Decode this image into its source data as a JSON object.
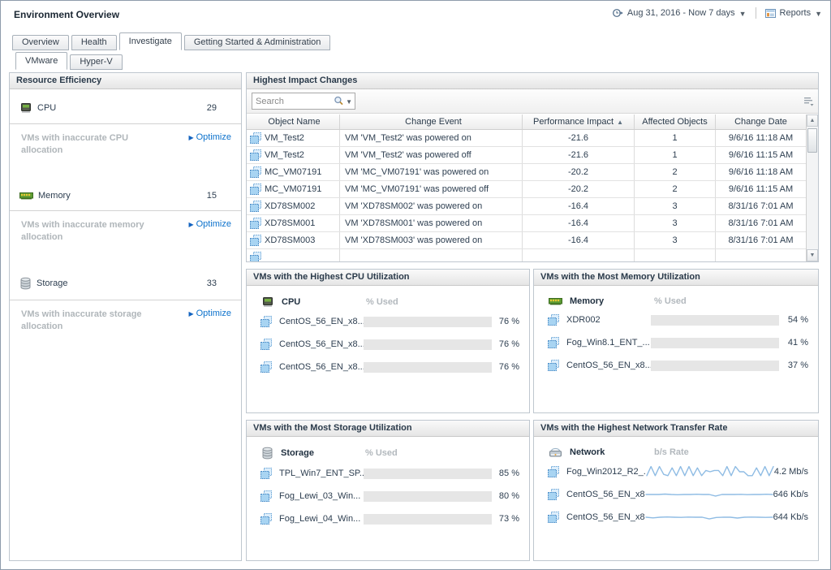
{
  "header": {
    "title": "Environment Overview",
    "time_range": "Aug 31, 2016 - Now 7 days",
    "reports": "Reports"
  },
  "tabs": [
    {
      "label": "Overview",
      "active": false
    },
    {
      "label": "Health",
      "active": false
    },
    {
      "label": "Investigate",
      "active": true
    },
    {
      "label": "Getting Started & Administration",
      "active": false
    }
  ],
  "subtabs": [
    {
      "label": "VMware",
      "active": true
    },
    {
      "label": "Hyper-V",
      "active": false
    }
  ],
  "resource_efficiency": {
    "title": "Resource Efficiency",
    "items": [
      {
        "icon": "cpu-icon",
        "label": "CPU",
        "value": "29",
        "note": "VMs with inaccurate CPU allocation",
        "action": "Optimize"
      },
      {
        "icon": "memory-icon",
        "label": "Memory",
        "value": "15",
        "note": "VMs with inaccurate memory allocation",
        "action": "Optimize"
      },
      {
        "icon": "storage-icon",
        "label": "Storage",
        "value": "33",
        "note": "VMs with inaccurate storage allocation",
        "action": "Optimize"
      }
    ]
  },
  "impact_changes": {
    "title": "Highest Impact Changes",
    "search_placeholder": "Search",
    "columns": [
      {
        "label": "Object Name",
        "sorted": false
      },
      {
        "label": "Change Event",
        "sorted": false
      },
      {
        "label": "Performance Impact",
        "sorted": true
      },
      {
        "label": "Affected Objects",
        "sorted": false
      },
      {
        "label": "Change Date",
        "sorted": false
      }
    ],
    "rows": [
      {
        "object": "VM_Test2",
        "event": "VM 'VM_Test2' was powered on",
        "impact": "-21.6",
        "affected": "1",
        "date": "9/6/16 11:18 AM"
      },
      {
        "object": "VM_Test2",
        "event": "VM 'VM_Test2' was powered off",
        "impact": "-21.6",
        "affected": "1",
        "date": "9/6/16 11:15 AM"
      },
      {
        "object": "MC_VM07191",
        "event": "VM 'MC_VM07191' was powered on",
        "impact": "-20.2",
        "affected": "2",
        "date": "9/6/16 11:18 AM"
      },
      {
        "object": "MC_VM07191",
        "event": "VM 'MC_VM07191' was powered off",
        "impact": "-20.2",
        "affected": "2",
        "date": "9/6/16 11:15 AM"
      },
      {
        "object": "XD78SM002",
        "event": "VM 'XD78SM002' was powered on",
        "impact": "-16.4",
        "affected": "3",
        "date": "8/31/16 7:01 AM"
      },
      {
        "object": "XD78SM001",
        "event": "VM 'XD78SM001' was powered on",
        "impact": "-16.4",
        "affected": "3",
        "date": "8/31/16 7:01 AM"
      },
      {
        "object": "XD78SM003",
        "event": "VM 'XD78SM003' was powered on",
        "impact": "-16.4",
        "affected": "3",
        "date": "8/31/16 7:01 AM"
      }
    ]
  },
  "utilization_panels": [
    {
      "id": "cpu",
      "title": "VMs with the Highest CPU Utilization",
      "icon": "cpu-icon",
      "metric": "CPU",
      "value_header": "% Used",
      "type": "bar",
      "rows": [
        {
          "name": "CentOS_56_EN_x8...",
          "percent": 76,
          "value": "76 %"
        },
        {
          "name": "CentOS_56_EN_x8...",
          "percent": 76,
          "value": "76 %"
        },
        {
          "name": "CentOS_56_EN_x8...",
          "percent": 76,
          "value": "76 %"
        }
      ]
    },
    {
      "id": "memory",
      "title": "VMs with the Most Memory Utilization",
      "icon": "memory-icon",
      "metric": "Memory",
      "value_header": "% Used",
      "type": "bar",
      "rows": [
        {
          "name": "XDR002",
          "percent": 54,
          "value": "54 %"
        },
        {
          "name": "Fog_Win8.1_ENT_...",
          "percent": 41,
          "value": "41 %"
        },
        {
          "name": "CentOS_56_EN_x8...",
          "percent": 37,
          "value": "37 %"
        }
      ]
    },
    {
      "id": "storage",
      "title": "VMs with the Most Storage Utilization",
      "icon": "storage-icon",
      "metric": "Storage",
      "value_header": "% Used",
      "type": "bar",
      "rows": [
        {
          "name": "TPL_Win7_ENT_SP...",
          "percent": 85,
          "value": "85 %"
        },
        {
          "name": "Fog_Lewi_03_Win...",
          "percent": 80,
          "value": "80 %"
        },
        {
          "name": "Fog_Lewi_04_Win...",
          "percent": 73,
          "value": "73 %"
        }
      ]
    },
    {
      "id": "network",
      "title": "VMs with the Highest Network Transfer Rate",
      "icon": "network-icon",
      "metric": "Network",
      "value_header": "b/s Rate",
      "type": "spark",
      "rows": [
        {
          "name": "Fog_Win2012_R2_...",
          "value": "4.2 Mb/s",
          "spark": [
            2,
            9,
            2,
            9,
            3,
            2,
            8,
            2,
            9,
            2,
            9,
            2,
            8,
            2,
            6,
            5,
            6,
            6,
            2,
            9,
            2,
            9,
            5,
            5,
            2,
            2,
            8,
            2,
            9,
            2,
            9
          ]
        },
        {
          "name": "CentOS_56_EN_x8...",
          "value": "646 Kb/s",
          "spark": [
            5,
            5,
            5,
            5.3,
            5,
            4.8,
            5,
            5,
            5.2,
            5,
            5,
            3.8,
            5,
            5,
            5,
            5.1,
            4.9,
            5,
            5,
            5.2,
            5
          ]
        },
        {
          "name": "CentOS_56_EN_x8...",
          "value": "644 Kb/s",
          "spark": [
            5,
            4.5,
            5,
            5.2,
            5,
            4.9,
            5.1,
            5,
            5,
            3.7,
            4.8,
            5,
            5,
            4.4,
            5,
            5.1,
            5,
            4.9,
            5
          ]
        }
      ]
    }
  ],
  "colors": {
    "bar_fill": "#1196e8",
    "bar_track": "#e6e6e6",
    "spark_line": "#8fbce4",
    "link_blue": "#0d72cc"
  }
}
